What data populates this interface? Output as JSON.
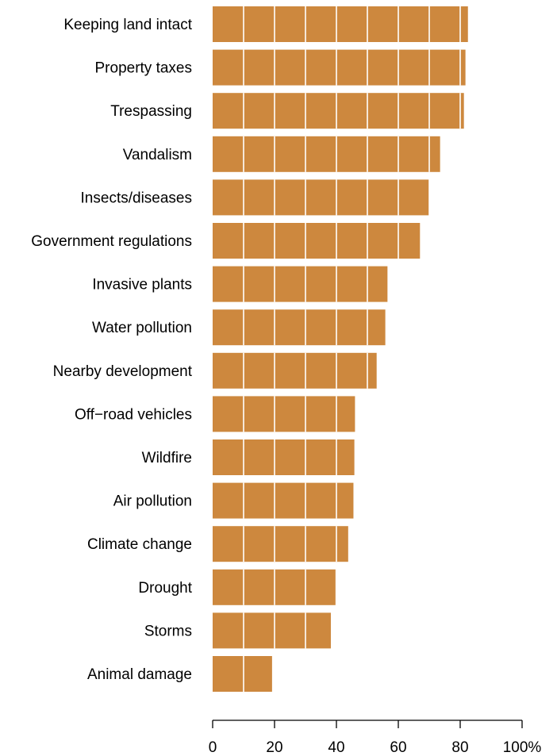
{
  "chart_data": {
    "type": "bar",
    "orientation": "horizontal",
    "categories": [
      "Keeping land intact",
      "Property taxes",
      "Trespassing",
      "Vandalism",
      "Insects/diseases",
      "Government regulations",
      "Invasive plants",
      "Water pollution",
      "Nearby development",
      "Off−road vehicles",
      "Wildfire",
      "Air pollution",
      "Climate change",
      "Drought",
      "Storms",
      "Animal damage"
    ],
    "values": [
      82.5,
      81.7,
      81.2,
      73.5,
      69.8,
      67.0,
      56.5,
      55.8,
      53.0,
      46.0,
      45.8,
      45.5,
      43.8,
      39.7,
      38.2,
      19.2
    ],
    "xlim": [
      0,
      100
    ],
    "xticks": [
      0,
      20,
      40,
      60,
      80,
      100
    ],
    "xtick_labels": [
      "0",
      "20",
      "40",
      "60",
      "80",
      "100%"
    ],
    "gridlines_x": [
      10,
      20,
      30,
      40,
      50,
      60,
      70,
      80,
      90
    ],
    "grid": "white vertical lines over bars",
    "legend": "none",
    "bar_color": "#cd883e",
    "grid_color": "#ffffff",
    "text_color": "#000000"
  }
}
